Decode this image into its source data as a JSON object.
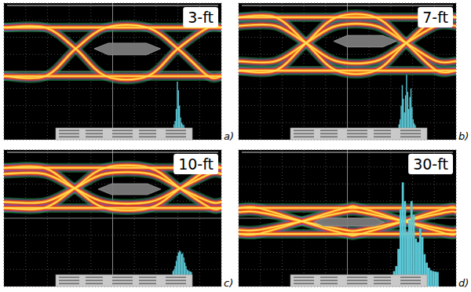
{
  "chart_data": [
    {
      "type": "eye_diagram",
      "title": "3-ft",
      "subtitle": "a)",
      "xlim": [
        0,
        10
      ],
      "ylim": [
        0,
        8
      ],
      "xticks": [
        0,
        1,
        2,
        3,
        4,
        5,
        6,
        7,
        8,
        9,
        10
      ],
      "yticks": [
        0,
        1,
        2,
        3,
        4,
        5,
        6,
        7,
        8
      ],
      "grid": true,
      "tick_labels": false,
      "x": [
        0,
        1.9,
        3.3,
        4.7,
        6.6,
        8.0,
        9.4,
        10
      ],
      "series": [
        {
          "values": [
            6.57,
            6.57,
            5.33,
            3.72,
            3.72,
            5.33,
            6.57,
            6.57
          ]
        },
        {
          "values": [
            3.72,
            3.72,
            5.33,
            6.57,
            6.57,
            5.33,
            3.72,
            3.72
          ]
        },
        {
          "values": [
            6.57,
            6.57,
            6.57,
            6.57,
            6.57,
            6.57,
            6.57,
            6.57
          ]
        },
        {
          "values": [
            3.72,
            3.72,
            3.72,
            3.72,
            3.72,
            3.72,
            3.72,
            3.72
          ]
        }
      ],
      "mask": {
        "x": [
          4.15,
          4.8,
          6.55,
          7.2,
          6.55,
          4.8
        ],
        "values": [
          5.33,
          5.66,
          5.66,
          5.33,
          4.97,
          4.97
        ]
      },
      "histogram": {
        "color": "#5cc8d6",
        "bins": [
          7.8,
          7.85,
          7.9,
          7.95,
          8.0,
          8.05,
          8.1,
          8.15,
          8.2,
          8.25,
          8.3
        ],
        "values": [
          0.9,
          1.1,
          1.8,
          3.4,
          2.9,
          2.0,
          1.3,
          1.0,
          0.9,
          0.85
        ]
      }
    },
    {
      "type": "eye_diagram",
      "title": "7-ft",
      "subtitle": "b)",
      "xlim": [
        0,
        10
      ],
      "ylim": [
        0,
        8
      ],
      "xticks": [
        0,
        1,
        2,
        3,
        4,
        5,
        6,
        7,
        8,
        9,
        10
      ],
      "yticks": [
        0,
        1,
        2,
        3,
        4,
        5,
        6,
        7,
        8
      ],
      "grid": true,
      "tick_labels": false,
      "x": [
        0,
        1.7,
        3.1,
        4.5,
        6.3,
        7.7,
        9.1,
        10
      ],
      "series": [
        {
          "values": [
            7.17,
            7.17,
            5.66,
            4.05,
            4.05,
            5.66,
            7.17,
            7.17
          ]
        },
        {
          "values": [
            4.05,
            4.05,
            5.66,
            7.17,
            7.17,
            5.66,
            4.05,
            4.05
          ]
        },
        {
          "values": [
            6.67,
            6.67,
            5.66,
            4.6,
            4.6,
            5.66,
            6.67,
            6.67
          ]
        },
        {
          "values": [
            4.6,
            4.6,
            5.66,
            6.67,
            6.67,
            5.66,
            4.6,
            4.6
          ]
        },
        {
          "values": [
            7.17,
            7.17,
            7.17,
            7.17,
            7.17,
            7.17,
            7.17,
            7.17
          ]
        },
        {
          "values": [
            4.05,
            4.05,
            4.05,
            4.05,
            4.05,
            4.05,
            4.05,
            4.05
          ]
        }
      ],
      "mask": {
        "x": [
          4.37,
          5.0,
          6.63,
          7.26,
          6.63,
          5.0
        ],
        "values": [
          5.77,
          6.11,
          6.11,
          5.77,
          5.43,
          5.43
        ]
      },
      "histogram": {
        "color": "#5cc8d6",
        "bins": [
          7.35,
          7.4,
          7.45,
          7.5,
          7.55,
          7.6,
          7.65,
          7.7,
          7.75,
          7.8,
          7.85,
          7.9,
          7.95,
          8.0,
          8.05,
          8.1,
          8.15
        ],
        "values": [
          0.9,
          1.2,
          2.0,
          3.2,
          2.4,
          1.6,
          2.6,
          3.8,
          2.8,
          1.8,
          2.5,
          3.0,
          1.9,
          1.2,
          0.95,
          0.85
        ]
      }
    },
    {
      "type": "eye_diagram",
      "title": "10-ft",
      "subtitle": "c)",
      "xlim": [
        0,
        10
      ],
      "ylim": [
        0,
        8
      ],
      "xticks": [
        0,
        1,
        2,
        3,
        4,
        5,
        6,
        7,
        8,
        9,
        10
      ],
      "yticks": [
        0,
        1,
        2,
        3,
        4,
        5,
        6,
        7,
        8
      ],
      "grid": true,
      "tick_labels": false,
      "x": [
        0,
        1.85,
        3.25,
        4.65,
        6.7,
        8.1,
        9.5,
        10
      ],
      "series": [
        {
          "values": [
            6.95,
            6.95,
            5.75,
            4.6,
            4.6,
            5.75,
            6.95,
            6.95
          ]
        },
        {
          "values": [
            4.6,
            4.6,
            5.75,
            6.95,
            6.95,
            5.75,
            4.6,
            4.6
          ]
        },
        {
          "values": [
            6.6,
            6.6,
            5.75,
            4.95,
            4.95,
            5.75,
            6.6,
            6.6
          ]
        },
        {
          "values": [
            4.95,
            4.95,
            5.75,
            6.6,
            6.6,
            5.75,
            4.95,
            4.95
          ]
        },
        {
          "values": [
            6.95,
            6.95,
            6.95,
            6.95,
            6.95,
            6.95,
            6.95,
            6.95
          ]
        },
        {
          "values": [
            4.6,
            4.6,
            4.6,
            4.6,
            4.6,
            4.6,
            4.6,
            4.6
          ]
        }
      ],
      "mask": {
        "x": [
          4.33,
          4.95,
          6.6,
          7.22,
          6.6,
          4.95
        ],
        "values": [
          5.7,
          6.02,
          6.02,
          5.7,
          5.38,
          5.38
        ]
      },
      "histogram": {
        "color": "#5cc8d6",
        "bins": [
          7.75,
          7.8,
          7.85,
          7.9,
          7.95,
          8.0,
          8.05,
          8.1,
          8.15,
          8.2,
          8.25,
          8.3,
          8.35,
          8.4,
          8.45,
          8.5,
          8.55,
          8.6,
          8.65
        ],
        "values": [
          0.9,
          1.0,
          1.2,
          1.5,
          1.8,
          2.0,
          2.1,
          2.05,
          1.9,
          1.95,
          1.7,
          1.4,
          1.2,
          1.0,
          0.95,
          0.9,
          0.88,
          0.85
        ]
      }
    },
    {
      "type": "eye_diagram",
      "title": "30-ft",
      "subtitle": "d)",
      "xlim": [
        0,
        10
      ],
      "ylim": [
        0,
        8
      ],
      "xticks": [
        0,
        1,
        2,
        3,
        4,
        5,
        6,
        7,
        8,
        9,
        10
      ],
      "yticks": [
        0,
        1,
        2,
        3,
        4,
        5,
        6,
        7,
        8
      ],
      "grid": true,
      "tick_labels": false,
      "x": [
        0,
        0.9,
        2.9,
        4.9,
        5.6,
        7.6,
        9.6,
        10
      ],
      "series": [
        {
          "values": [
            4.6,
            4.6,
            3.82,
            3.08,
            3.08,
            3.82,
            4.6,
            4.6
          ]
        },
        {
          "values": [
            3.08,
            3.08,
            3.82,
            4.6,
            4.6,
            3.82,
            3.08,
            3.08
          ]
        },
        {
          "values": [
            4.36,
            4.36,
            3.82,
            3.31,
            3.31,
            3.82,
            4.36,
            4.36
          ]
        },
        {
          "values": [
            3.31,
            3.31,
            3.82,
            4.36,
            4.36,
            3.82,
            3.31,
            3.31
          ]
        },
        {
          "values": [
            4.6,
            4.6,
            4.6,
            4.6,
            4.6,
            4.6,
            4.6,
            4.6
          ]
        },
        {
          "values": [
            3.08,
            3.08,
            3.08,
            3.08,
            3.08,
            3.08,
            3.08,
            3.08
          ]
        }
      ],
      "mask": {
        "x": [
          3.47,
          3.9,
          6.28,
          6.71,
          6.28,
          3.9
        ],
        "values": [
          3.77,
          4.0,
          4.0,
          3.77,
          3.54,
          3.54
        ]
      },
      "histogram": {
        "color": "#5cc8d6",
        "bins": [
          7.1,
          7.2,
          7.3,
          7.4,
          7.5,
          7.6,
          7.7,
          7.8,
          7.9,
          8.0,
          8.1,
          8.2,
          8.3,
          8.4,
          8.5,
          8.6,
          8.7,
          8.8,
          8.9,
          9.0,
          9.1,
          9.2
        ],
        "values": [
          0.9,
          1.2,
          2.2,
          4.5,
          6.1,
          5.0,
          3.2,
          3.9,
          5.0,
          4.2,
          2.8,
          2.6,
          3.4,
          2.9,
          1.9,
          1.4,
          1.1,
          0.95,
          0.9,
          0.87,
          0.85
        ]
      }
    }
  ]
}
